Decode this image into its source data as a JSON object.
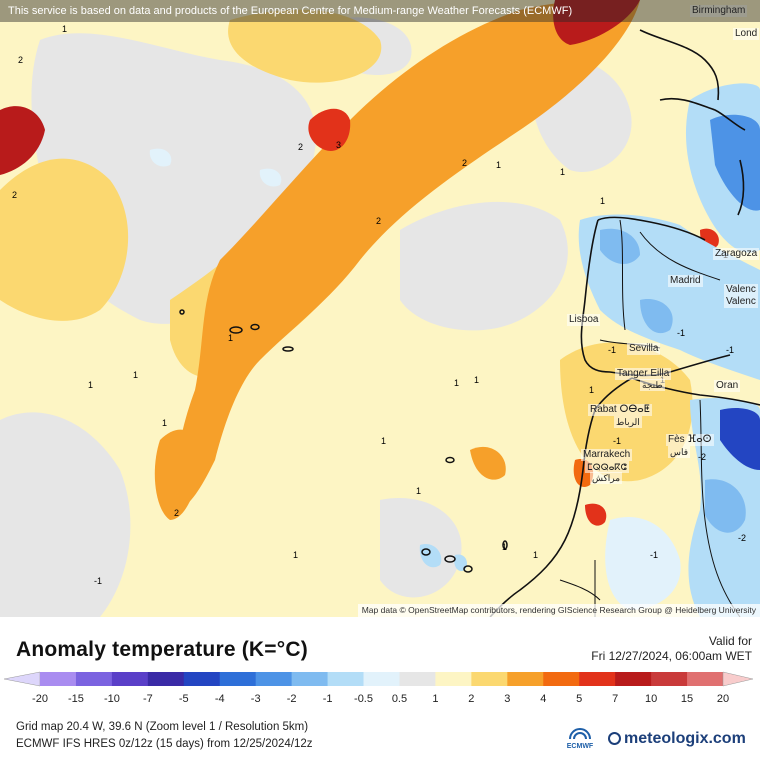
{
  "banner": "This service is based on data and products of the European Centre for Medium-range Weather Forecasts (ECMWF)",
  "attribution": "Map data © OpenStreetMap contributors, rendering GIScience Research Group @ Heidelberg University",
  "cities": [
    {
      "id": "birmingham",
      "label": "Birmingham"
    },
    {
      "id": "london",
      "label": "Lond"
    },
    {
      "id": "zaragoza",
      "label": "Zaragoza"
    },
    {
      "id": "madrid",
      "label": "Madrid"
    },
    {
      "id": "valencia1",
      "label": "Valenc"
    },
    {
      "id": "valencia2",
      "label": "Valenc"
    },
    {
      "id": "lisboa",
      "label": "Lisboa"
    },
    {
      "id": "sevilla",
      "label": "Sevilla"
    },
    {
      "id": "tanger",
      "label": "Tanger Eilla"
    },
    {
      "id": "tanger_ar",
      "label": "طنجة"
    },
    {
      "id": "oran",
      "label": "Oran"
    },
    {
      "id": "rabat",
      "label": "Rabat ⵔⴱⴰⵟ"
    },
    {
      "id": "rabat_ar",
      "label": "الرباط"
    },
    {
      "id": "fes",
      "label": "Fès ⴼⴰⵙ"
    },
    {
      "id": "fes_ar",
      "label": "فاس"
    },
    {
      "id": "marrakech",
      "label": "Marrakech"
    },
    {
      "id": "marrakech_tf",
      "label": "ⵎⵕⵕⴰⴽⵛ"
    },
    {
      "id": "marrakech_ar",
      "label": "مراكش"
    }
  ],
  "isolines": [
    "1",
    "2",
    "2",
    "2",
    "3",
    "2",
    "2",
    "1",
    "1",
    "1",
    "1",
    "1",
    "1",
    "1",
    "1",
    "2",
    "1",
    "1",
    "1",
    "1",
    "1",
    "1",
    "1",
    "-1",
    "-1",
    "-1",
    "-1",
    "-1",
    "-2",
    "-2",
    "-1",
    "1",
    "-1"
  ],
  "title": "Anomaly temperature (K=°C)",
  "valid_label": "Valid for",
  "valid_time": "Fri 12/27/2024, 06:00am WET",
  "legend": {
    "ticks": [
      "-20",
      "-15",
      "-10",
      "-7",
      "-5",
      "-4",
      "-3",
      "-2",
      "-1",
      "-0.5",
      "0.5",
      "1",
      "2",
      "3",
      "4",
      "5",
      "7",
      "10",
      "15",
      "20"
    ],
    "colors": [
      "#a98cf0",
      "#7b63e0",
      "#5a3fc8",
      "#3a2aa6",
      "#2345c2",
      "#2e6fd8",
      "#4d93e6",
      "#7fbbf0",
      "#b3ddf7",
      "#e2f2fb",
      "#e6e6e6",
      "#fdf5c4",
      "#fbd870",
      "#f6a02a",
      "#f26a10",
      "#e2321a",
      "#b81b1b",
      "#c93a3a",
      "#e07070",
      "#f2a6a6",
      "#f8cccc"
    ]
  },
  "grid_info": "Grid map 20.4 W, 39.6 N (Zoom level 1 / Resolution 5km)",
  "model_info": "ECMWF IFS HRES 0z/12z (15 days)  from  12/25/2024/12z",
  "ecmwf_label": "ECMWF",
  "brand": "meteologix.com"
}
